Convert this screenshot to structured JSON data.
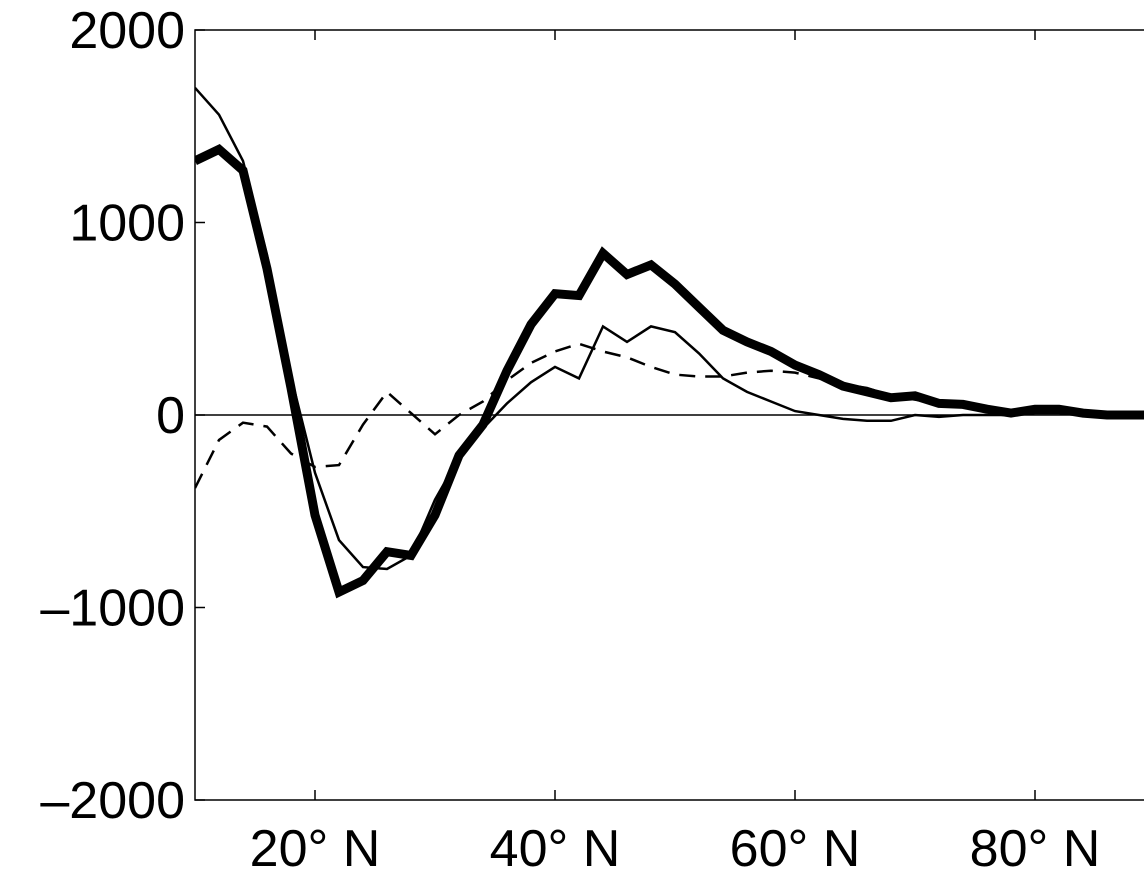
{
  "chart_data": {
    "type": "line",
    "title": "",
    "xlabel": "",
    "ylabel": "",
    "xlim": [
      10,
      90
    ],
    "ylim": [
      -2000,
      2000
    ],
    "grid": false,
    "legend": "none",
    "x_ticks": [
      {
        "value": 20,
        "label": "20° N"
      },
      {
        "value": 40,
        "label": "40° N"
      },
      {
        "value": 60,
        "label": "60° N"
      },
      {
        "value": 80,
        "label": "80° N"
      }
    ],
    "y_ticks": [
      {
        "value": 2000,
        "label": "2000"
      },
      {
        "value": 1000,
        "label": "1000"
      },
      {
        "value": 0,
        "label": "0"
      },
      {
        "value": -1000,
        "label": "–1000"
      },
      {
        "value": -2000,
        "label": "–2000"
      }
    ],
    "zero_line": true,
    "series": [
      {
        "style": "thick",
        "color": "#000000",
        "x": [
          10,
          12,
          14,
          16,
          18,
          20,
          22,
          24,
          26,
          28,
          30,
          32,
          34,
          36,
          38,
          40,
          42,
          44,
          46,
          48,
          50,
          52,
          54,
          56,
          58,
          60,
          62,
          64,
          66,
          68,
          70,
          72,
          74,
          76,
          78,
          80,
          82,
          84,
          86,
          88,
          90
        ],
        "values": [
          1320,
          1380,
          1270,
          760,
          140,
          -520,
          -920,
          -860,
          -710,
          -730,
          -520,
          -210,
          -50,
          230,
          470,
          630,
          620,
          840,
          730,
          780,
          680,
          560,
          440,
          380,
          330,
          260,
          210,
          150,
          120,
          90,
          100,
          60,
          55,
          30,
          10,
          30,
          30,
          10,
          0,
          0,
          0
        ]
      },
      {
        "style": "thin",
        "color": "#000000",
        "x": [
          10,
          12,
          14,
          16,
          18,
          20,
          22,
          24,
          26,
          28,
          30,
          32,
          34,
          36,
          38,
          40,
          42,
          44,
          46,
          48,
          50,
          52,
          54,
          56,
          58,
          60,
          62,
          64,
          66,
          68,
          70,
          72,
          74,
          76,
          78,
          80,
          82,
          84,
          86,
          88,
          90
        ],
        "values": [
          1700,
          1560,
          1320,
          830,
          200,
          -300,
          -650,
          -790,
          -800,
          -730,
          -440,
          -220,
          -70,
          60,
          170,
          250,
          190,
          460,
          380,
          460,
          430,
          320,
          190,
          120,
          70,
          20,
          0,
          -20,
          -30,
          -30,
          0,
          -10,
          0,
          0,
          0,
          10,
          10,
          0,
          0,
          0,
          0
        ]
      },
      {
        "style": "dashed",
        "color": "#000000",
        "x": [
          10,
          12,
          14,
          16,
          18,
          20,
          22,
          24,
          26,
          28,
          30,
          32,
          34,
          36,
          38,
          40,
          42,
          44,
          46,
          48,
          50,
          52,
          54,
          56,
          58,
          60,
          62,
          64,
          66,
          68,
          70,
          72,
          74,
          76,
          78,
          80,
          82,
          84,
          86,
          88,
          90
        ],
        "values": [
          -380,
          -130,
          -40,
          -60,
          -200,
          -270,
          -260,
          -50,
          120,
          10,
          -100,
          0,
          70,
          180,
          270,
          330,
          370,
          330,
          300,
          250,
          210,
          200,
          200,
          220,
          230,
          220,
          190,
          160,
          140,
          100,
          80,
          60,
          50,
          30,
          20,
          20,
          10,
          0,
          0,
          0,
          0
        ]
      }
    ]
  }
}
